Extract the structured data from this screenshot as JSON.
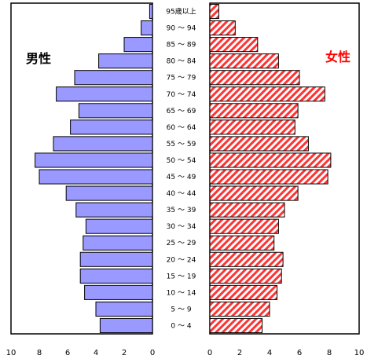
{
  "chart_data": {
    "type": "bar",
    "orientation": "horizontal",
    "layout": "population-pyramid",
    "categories": [
      "95歳以上",
      "90 ～ 94",
      "85 ～ 89",
      "80 ～ 84",
      "75 ～ 79",
      "70 ～ 74",
      "65 ～ 69",
      "60 ～ 64",
      "55 ～ 59",
      "50 ～ 54",
      "45 ～ 49",
      "40 ～ 44",
      "35 ～ 39",
      "30 ～ 34",
      "25 ～ 29",
      "20 ～ 24",
      "15 ～ 19",
      "10 ～ 14",
      "5 ～ 9",
      "0 ～ 4"
    ],
    "series": [
      {
        "name": "男性",
        "color": "#9999ff",
        "values": [
          0.2,
          0.8,
          2.0,
          3.8,
          5.5,
          6.8,
          5.2,
          5.8,
          7.0,
          8.3,
          8.0,
          6.1,
          5.4,
          4.7,
          4.9,
          5.1,
          5.1,
          4.8,
          4.0,
          3.7
        ]
      },
      {
        "name": "女性",
        "color": "#ff3333",
        "pattern": "diagonal-hatch",
        "values": [
          0.6,
          1.7,
          3.2,
          4.6,
          6.0,
          7.7,
          5.9,
          5.7,
          6.6,
          8.1,
          7.9,
          5.9,
          5.0,
          4.6,
          4.3,
          4.9,
          4.8,
          4.5,
          4.0,
          3.5
        ]
      }
    ],
    "left_axis_ticks": [
      "10",
      "8",
      "6",
      "4",
      "2",
      "0"
    ],
    "right_axis_ticks": [
      "0",
      "2",
      "4",
      "6",
      "8",
      "10"
    ],
    "xlim": [
      0,
      10
    ],
    "grid": false
  }
}
